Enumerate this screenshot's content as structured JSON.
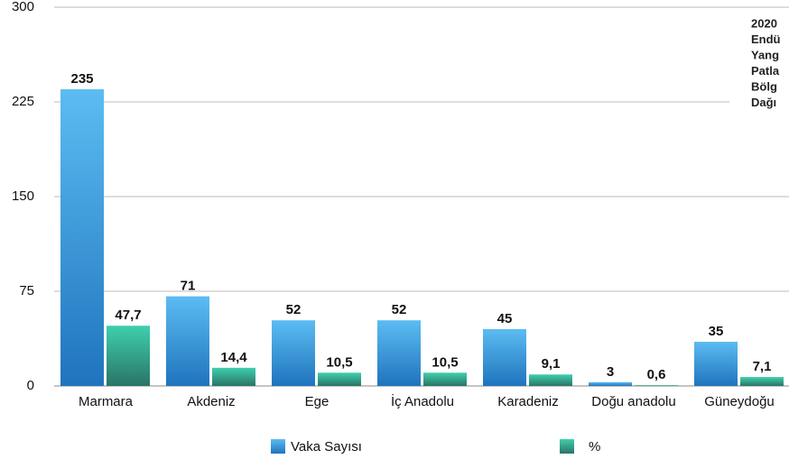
{
  "chart_data": {
    "type": "bar",
    "title_lines": [
      "2020",
      "Endü",
      "Yang",
      "Patla",
      "Bölg",
      "Dağı"
    ],
    "categories": [
      "Marmara",
      "Akdeniz",
      "Ege",
      "İç Anadolu",
      "Karadeniz",
      "Doğu anadolu",
      "Güneydoğu"
    ],
    "series": [
      {
        "name": "Vaka Sayısı",
        "color": "#3a9ee0",
        "values": [
          235,
          71,
          52,
          52,
          45,
          3,
          35
        ]
      },
      {
        "name": "%",
        "color": "#2fae96",
        "values": [
          47.7,
          14.4,
          10.5,
          10.5,
          9.1,
          0.6,
          7.1
        ],
        "value_labels": [
          "47,7",
          "14,4",
          "10,5",
          "10,5",
          "9,1",
          "0,6",
          "7,1"
        ]
      }
    ],
    "ylim": [
      0,
      300
    ],
    "yticks": [
      0,
      75,
      150,
      225,
      300
    ],
    "grid": true,
    "legend": "bottom"
  }
}
